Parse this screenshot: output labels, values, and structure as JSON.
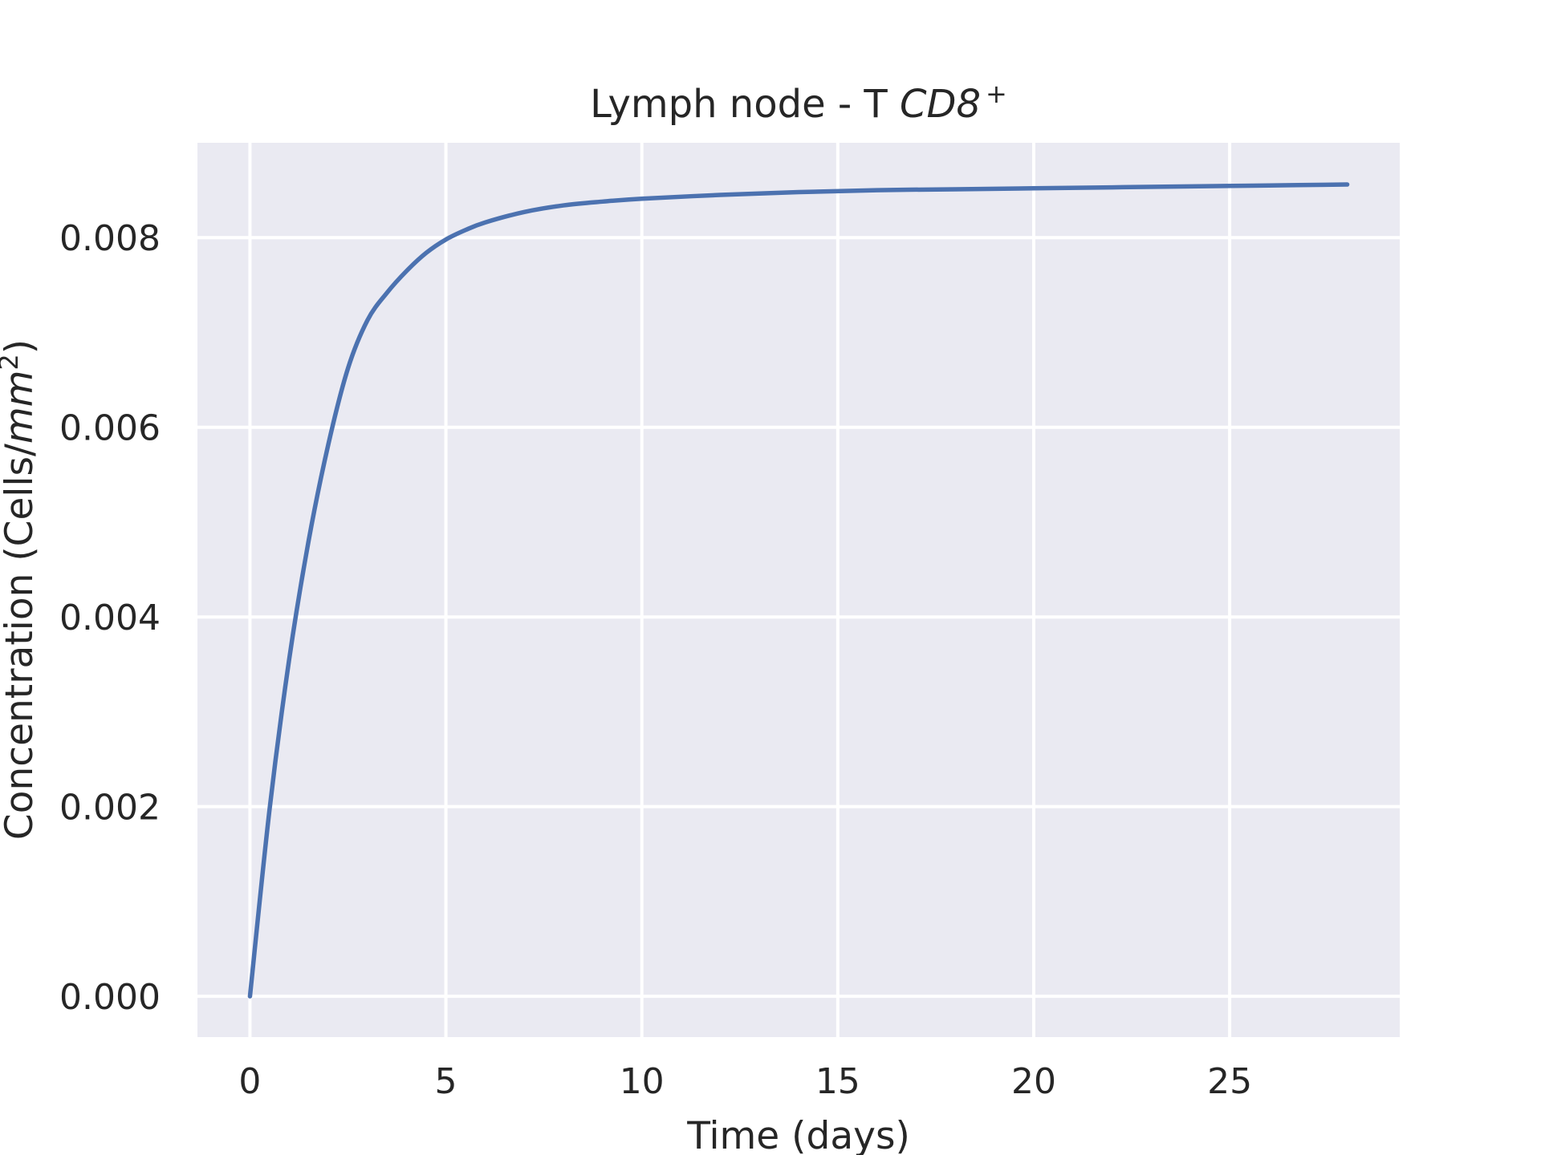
{
  "chart_data": {
    "type": "line",
    "title": "Lymph node - T CD8",
    "title_math": "CD8",
    "title_sup": "+",
    "title_prefix": "Lymph node - T ",
    "xlabel": "Time (days)",
    "ylabel": "Concentration (Cells/mm²)",
    "ylabel_prefix": "Concentration (Cells/",
    "ylabel_math": "mm",
    "ylabel_sup": "2",
    "ylabel_suffix": ")",
    "xlim": [
      -1.34,
      29.34
    ],
    "ylim": [
      -0.00043,
      0.009
    ],
    "xticks": [
      0,
      5,
      10,
      15,
      20,
      25
    ],
    "xtick_labels": [
      "0",
      "5",
      "10",
      "15",
      "20",
      "25"
    ],
    "yticks": [
      0.0,
      0.002,
      0.004,
      0.006,
      0.008
    ],
    "ytick_labels": [
      "0.000",
      "0.002",
      "0.004",
      "0.006",
      "0.008"
    ],
    "grid": true,
    "background": "#eaeaf2",
    "series": [
      {
        "color": "#4c72b0",
        "x": [
          0,
          0.5,
          1,
          1.5,
          2,
          2.5,
          3,
          3.5,
          4,
          4.5,
          5,
          5.5,
          6,
          7,
          8,
          9,
          10,
          12,
          14,
          16,
          18,
          20,
          22,
          24,
          26,
          28
        ],
        "y": [
          0.0,
          0.00197,
          0.00355,
          0.00481,
          0.00582,
          0.00662,
          0.00713,
          0.00742,
          0.00765,
          0.00784,
          0.00798,
          0.00808,
          0.00816,
          0.00827,
          0.00834,
          0.00838,
          0.00841,
          0.00845,
          0.00848,
          0.0085,
          0.00851,
          0.00852,
          0.00853,
          0.00854,
          0.00855,
          0.00856
        ]
      }
    ]
  }
}
